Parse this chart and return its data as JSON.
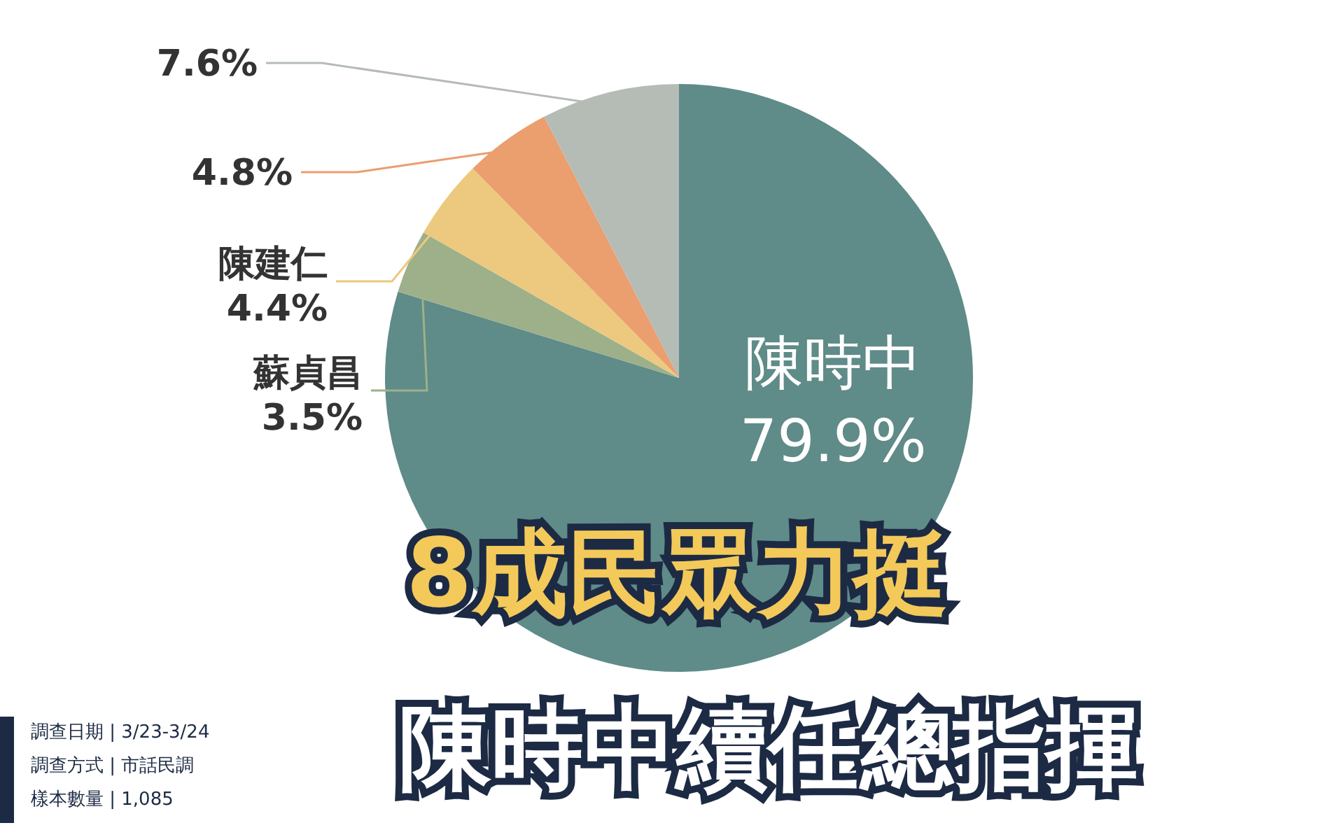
{
  "chart_data": {
    "type": "pie",
    "title": "8成民眾力挺",
    "subtitle": "陳時中續任總指揮",
    "categories": [
      "陳時中",
      "蘇貞昌",
      "陳建仁",
      null,
      null
    ],
    "values": [
      79.9,
      3.5,
      4.4,
      4.8,
      7.6
    ],
    "value_labels": [
      "79.9%",
      "3.5%",
      "4.4%",
      "4.8%",
      "7.6%"
    ],
    "colors": [
      "#5f8b88",
      "#9db08a",
      "#ecc97e",
      "#eb9e6e",
      "#b5bcb6"
    ],
    "annotations": [
      "調查日期 | 3/23-3/24",
      "調查方式 | 市話民調",
      "樣本數量 | 1,085"
    ]
  }
}
